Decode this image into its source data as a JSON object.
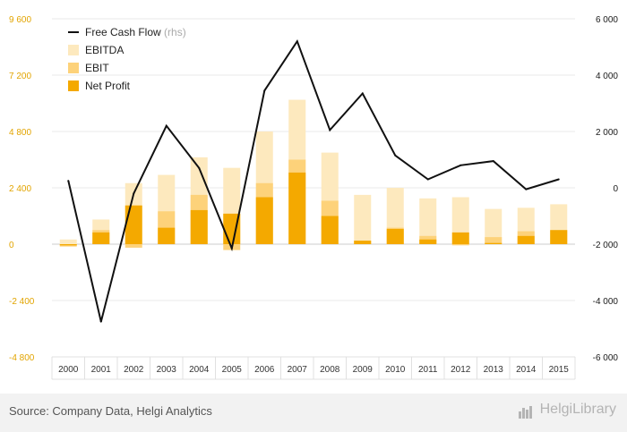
{
  "chart_data": {
    "type": "bar",
    "title": "",
    "categories": [
      "2000",
      "2001",
      "2002",
      "2003",
      "2004",
      "2005",
      "2006",
      "2007",
      "2008",
      "2009",
      "2010",
      "2011",
      "2012",
      "2013",
      "2014",
      "2015"
    ],
    "series": [
      {
        "name": "EBITDA",
        "axis": "left",
        "color": "#fde9be",
        "values": [
          200,
          1050,
          2600,
          2950,
          3700,
          3250,
          4800,
          6150,
          3900,
          2100,
          2400,
          1950,
          2000,
          1500,
          1550,
          1700
        ]
      },
      {
        "name": "EBIT",
        "axis": "left",
        "color": "#fdd27a",
        "values": [
          -100,
          600,
          -150,
          1400,
          2100,
          -250,
          2600,
          3600,
          1850,
          150,
          700,
          350,
          -50,
          300,
          550,
          600
        ]
      },
      {
        "name": "Net Profit",
        "axis": "left",
        "color": "#f4a900",
        "values": [
          -50,
          500,
          1650,
          700,
          1450,
          1300,
          2000,
          3050,
          1200,
          150,
          650,
          200,
          500,
          50,
          350,
          600
        ]
      },
      {
        "name": "Free Cash Flow",
        "suffix": "(rhs)",
        "axis": "right",
        "type": "line",
        "color": "#111111",
        "values": [
          250,
          -4750,
          -200,
          2200,
          700,
          -2150,
          3450,
          5200,
          2050,
          3350,
          1150,
          300,
          800,
          950,
          -50,
          300
        ]
      }
    ],
    "y_left": {
      "ylim": [
        -4800,
        9600
      ],
      "ticks": [
        9600,
        7200,
        4800,
        2400,
        0,
        -2400,
        -4800
      ],
      "tick_labels": [
        "9 600",
        "7 200",
        "4 800",
        "2 400",
        "0",
        "-2 400",
        "-4 800"
      ]
    },
    "y_right": {
      "ylim": [
        -6000,
        6000
      ],
      "ticks": [
        6000,
        4000,
        2000,
        0,
        -2000,
        -4000,
        -6000
      ],
      "tick_labels": [
        "6 000",
        "4 000",
        "2 000",
        "0",
        "-2 000",
        "-4 000",
        "-6 000"
      ]
    },
    "legend": {
      "placement": "top-left",
      "order": [
        "Free Cash Flow",
        "EBITDA",
        "EBIT",
        "Net Profit"
      ]
    },
    "grid": true
  },
  "footer": {
    "source": "Source: Company Data, Helgi Analytics",
    "logo": "HelgiLibrary"
  }
}
